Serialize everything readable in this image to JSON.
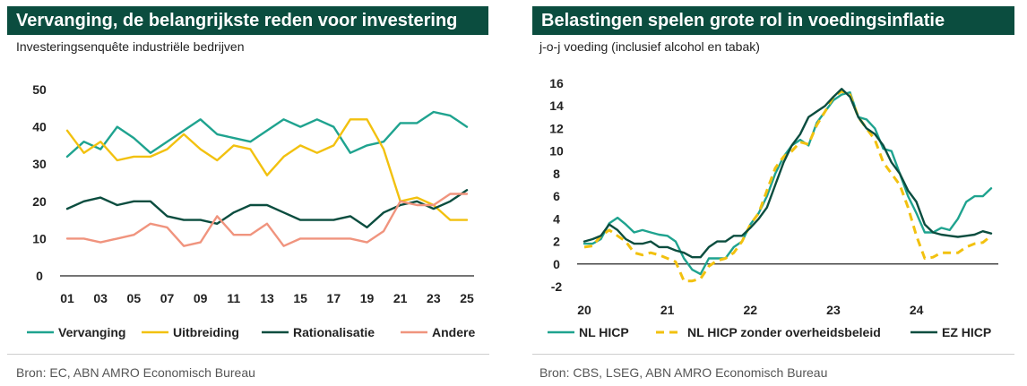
{
  "charts": [
    {
      "title": "Vervanging, de belangrijkste reden voor investering",
      "subtitle": "Investeringsenquête industriële bedrijven",
      "source": "Bron: EC, ABN AMRO Economisch Bureau"
    },
    {
      "title": "Belastingen spelen grote rol in voedingsinflatie",
      "subtitle": "j-o-j voeding (inclusief alcohol en tabak)",
      "source": "Bron: CBS, LSEG, ABN AMRO Economisch Bureau"
    }
  ],
  "chart_data": [
    {
      "type": "line",
      "title": "Vervanging, de belangrijkste reden voor investering",
      "subtitle": "Investeringsenquête industriële bedrijven",
      "x": [
        1,
        2,
        3,
        4,
        5,
        6,
        7,
        8,
        9,
        10,
        11,
        12,
        13,
        14,
        15,
        16,
        17,
        18,
        19,
        20,
        21,
        22,
        23,
        24,
        25
      ],
      "xtick_labels": [
        "01",
        "03",
        "05",
        "07",
        "09",
        "11",
        "13",
        "15",
        "17",
        "19",
        "21",
        "23",
        "25"
      ],
      "xtick_values": [
        1,
        3,
        5,
        7,
        9,
        11,
        13,
        15,
        17,
        19,
        21,
        23,
        25
      ],
      "xlim": [
        1,
        25
      ],
      "ylim": [
        0,
        50
      ],
      "yticks": [
        0,
        10,
        20,
        30,
        40,
        50
      ],
      "grid": false,
      "legend_position": "bottom",
      "series": [
        {
          "name": "Vervanging",
          "color": "#1fa38f",
          "dash": false,
          "values": [
            32,
            36,
            34,
            40,
            37,
            33,
            36,
            39,
            42,
            38,
            37,
            36,
            39,
            42,
            40,
            42,
            40,
            33,
            35,
            36,
            41,
            41,
            44,
            43,
            40
          ]
        },
        {
          "name": "Uitbreiding",
          "color": "#f2c10f",
          "dash": false,
          "values": [
            39,
            33,
            36,
            31,
            32,
            32,
            34,
            38,
            34,
            31,
            35,
            34,
            27,
            32,
            35,
            33,
            35,
            42,
            42,
            34,
            20,
            21,
            19,
            15,
            15
          ]
        },
        {
          "name": "Rationalisatie",
          "color": "#0b4d3f",
          "dash": false,
          "values": [
            18,
            20,
            21,
            19,
            20,
            20,
            16,
            15,
            15,
            14,
            17,
            19,
            19,
            17,
            15,
            15,
            15,
            16,
            13,
            17,
            19,
            20,
            18,
            20,
            23
          ]
        },
        {
          "name": "Andere",
          "color": "#f0947e",
          "dash": false,
          "values": [
            10,
            10,
            9,
            10,
            11,
            14,
            13,
            8,
            9,
            16,
            11,
            11,
            14,
            8,
            10,
            10,
            10,
            10,
            9,
            12,
            20,
            19,
            19,
            22,
            22
          ]
        }
      ]
    },
    {
      "type": "line",
      "title": "Belastingen spelen grote rol in voedingsinflatie",
      "subtitle": "j-o-j voeding (inclusief alcohol en tabak)",
      "xtick_labels": [
        "20",
        "21",
        "22",
        "23",
        "24"
      ],
      "xtick_values": [
        2020,
        2021,
        2022,
        2023,
        2024
      ],
      "xlim": [
        2020,
        2024.9
      ],
      "ylim": [
        -2,
        16
      ],
      "yticks": [
        -2,
        0,
        2,
        4,
        6,
        8,
        10,
        12,
        14,
        16
      ],
      "grid": false,
      "legend_position": "bottom",
      "series": [
        {
          "name": "NL HICP",
          "color": "#1fa38f",
          "dash": false,
          "x": [
            2020,
            2020.1,
            2020.2,
            2020.3,
            2020.4,
            2020.5,
            2020.6,
            2020.7,
            2020.8,
            2020.9,
            2021,
            2021.1,
            2021.2,
            2021.3,
            2021.4,
            2021.5,
            2021.6,
            2021.7,
            2021.8,
            2021.9,
            2022,
            2022.1,
            2022.2,
            2022.3,
            2022.4,
            2022.5,
            2022.6,
            2022.7,
            2022.8,
            2022.9,
            2023,
            2023.1,
            2023.2,
            2023.3,
            2023.4,
            2023.5,
            2023.6,
            2023.7,
            2023.8,
            2023.9,
            2024,
            2024.1,
            2024.2,
            2024.3,
            2024.4,
            2024.5,
            2024.6,
            2024.7,
            2024.8,
            2024.9
          ],
          "y": [
            1.8,
            1.8,
            2.2,
            3.6,
            4.1,
            3.5,
            2.8,
            3.0,
            2.8,
            2.6,
            2.5,
            2.0,
            0.5,
            -0.5,
            -0.9,
            0.5,
            0.5,
            0.5,
            1.5,
            2.0,
            3.5,
            4.5,
            6.0,
            8.0,
            9.5,
            10.5,
            11.0,
            10.5,
            12.5,
            13.5,
            14.5,
            15.0,
            15.2,
            13.0,
            12.8,
            12.0,
            10.2,
            10.0,
            8.0,
            6.0,
            4.5,
            2.8,
            2.8,
            3.2,
            3.0,
            4.0,
            5.5,
            6.0,
            6.0,
            6.7
          ]
        },
        {
          "name": "NL HICP zonder overheidsbeleid",
          "color": "#f2c10f",
          "dash": true,
          "x": [
            2020,
            2020.1,
            2020.2,
            2020.3,
            2020.4,
            2020.5,
            2020.6,
            2020.7,
            2020.8,
            2020.9,
            2021,
            2021.1,
            2021.2,
            2021.3,
            2021.4,
            2021.5,
            2021.6,
            2021.7,
            2021.8,
            2021.9,
            2022,
            2022.1,
            2022.2,
            2022.3,
            2022.4,
            2022.5,
            2022.6,
            2022.7,
            2022.8,
            2022.9,
            2023,
            2023.1,
            2023.2,
            2023.3,
            2023.4,
            2023.5,
            2023.6,
            2023.7,
            2023.8,
            2023.9,
            2024,
            2024.1,
            2024.2,
            2024.3,
            2024.4,
            2024.5,
            2024.6,
            2024.7,
            2024.8,
            2024.9
          ],
          "y": [
            1.5,
            1.6,
            2.5,
            3.0,
            2.5,
            2.0,
            1.0,
            0.8,
            1.0,
            0.8,
            0.5,
            0.2,
            -1.5,
            -1.5,
            -1.3,
            -0.2,
            0.3,
            0.5,
            1.0,
            2.0,
            3.5,
            4.5,
            6.5,
            8.5,
            9.5,
            10.0,
            10.8,
            10.6,
            12.3,
            13.5,
            14.8,
            15.3,
            15.0,
            13.0,
            12.0,
            11.0,
            9.0,
            8.0,
            7.0,
            5.0,
            2.5,
            0.5,
            0.6,
            1.0,
            1.0,
            1.0,
            1.5,
            1.8,
            1.9,
            2.5
          ]
        },
        {
          "name": "EZ HICP",
          "color": "#0b4d3f",
          "dash": false,
          "x": [
            2020,
            2020.1,
            2020.2,
            2020.3,
            2020.4,
            2020.5,
            2020.6,
            2020.7,
            2020.8,
            2020.9,
            2021,
            2021.1,
            2021.2,
            2021.3,
            2021.4,
            2021.5,
            2021.6,
            2021.7,
            2021.8,
            2021.9,
            2022,
            2022.1,
            2022.2,
            2022.3,
            2022.4,
            2022.5,
            2022.6,
            2022.7,
            2022.8,
            2022.9,
            2023,
            2023.1,
            2023.2,
            2023.3,
            2023.4,
            2023.5,
            2023.6,
            2023.7,
            2023.8,
            2023.9,
            2024,
            2024.1,
            2024.2,
            2024.3,
            2024.4,
            2024.5,
            2024.6,
            2024.7,
            2024.8,
            2024.9
          ],
          "y": [
            2.0,
            2.2,
            2.5,
            3.5,
            3.0,
            2.2,
            1.8,
            1.8,
            2.0,
            1.5,
            1.5,
            1.2,
            1.0,
            0.6,
            0.6,
            1.5,
            2.0,
            2.0,
            2.5,
            2.5,
            3.2,
            4.0,
            5.0,
            7.0,
            9.0,
            10.5,
            11.5,
            13.0,
            13.5,
            14.0,
            14.8,
            15.5,
            14.8,
            13.0,
            12.0,
            11.5,
            10.5,
            9.0,
            8.0,
            6.5,
            5.5,
            3.5,
            2.8,
            2.6,
            2.5,
            2.4,
            2.5,
            2.6,
            2.9,
            2.7
          ]
        }
      ]
    }
  ]
}
